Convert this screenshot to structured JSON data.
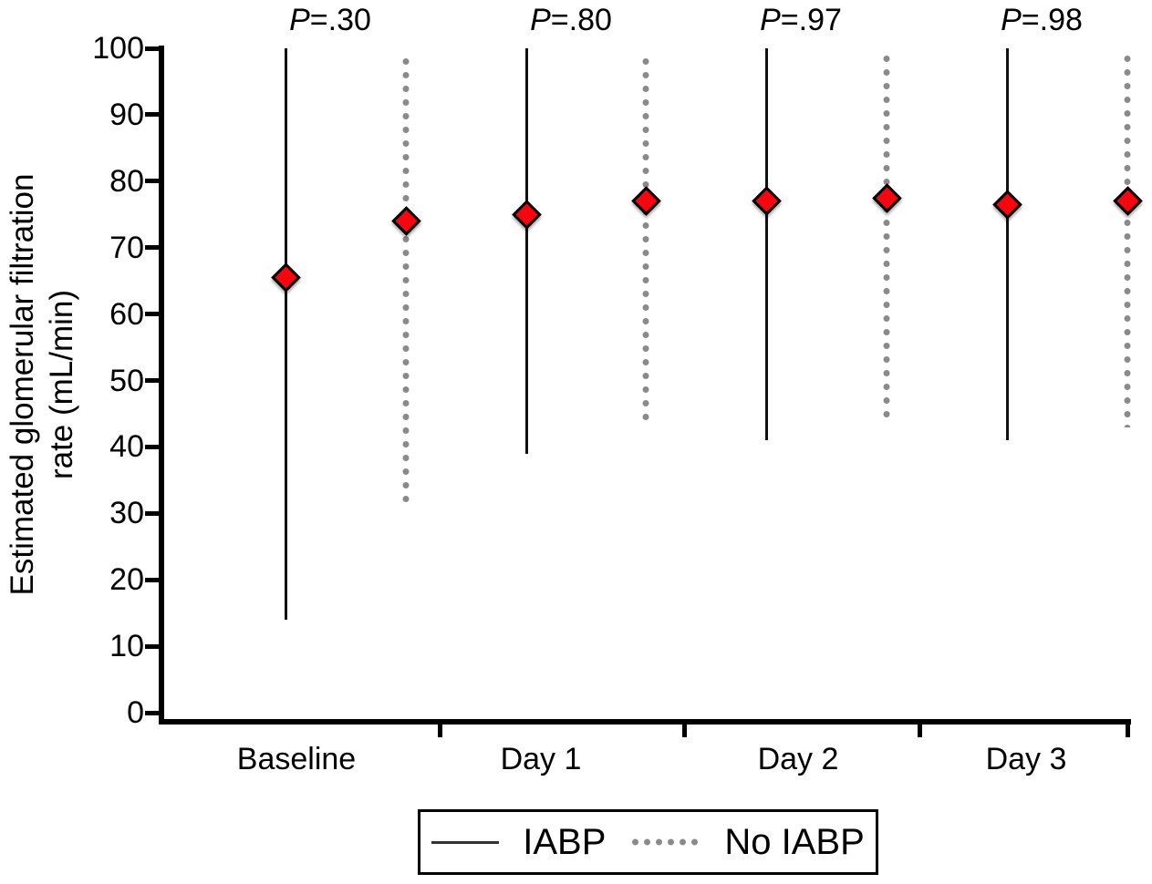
{
  "figure": {
    "background": "#ffffff",
    "marker_color": "#f5070f",
    "iabp_line_color": "#111111",
    "no_iabp_dot_color": "#8a8a8a"
  },
  "legend": {
    "items": [
      {
        "label": "IABP",
        "style": "solid-line"
      },
      {
        "label": "No IABP",
        "style": "dotted-line"
      }
    ]
  },
  "chart_data": {
    "type": "scatter",
    "subtype": "mean-with-range-bars",
    "title": "",
    "xlabel": "",
    "ylabel": "Estimated glomerular filtration rate (mL/min)",
    "ylabel_lines": [
      "Estimated glomerular filtration",
      "rate (mL/min)"
    ],
    "ylim": [
      0,
      100
    ],
    "yticks": [
      0,
      10,
      20,
      30,
      40,
      50,
      60,
      70,
      80,
      90,
      100
    ],
    "grid": false,
    "legend_position": "bottom",
    "categories": [
      "Baseline",
      "Day 1",
      "Day 2",
      "Day 3"
    ],
    "p_values": [
      "P=.30",
      "P=.80",
      "P=.97",
      "P=.98"
    ],
    "series": [
      {
        "name": "IABP",
        "line_style": "solid",
        "color": "#111111",
        "marker": {
          "shape": "diamond",
          "fill": "#f5070f",
          "border": "#000000"
        },
        "points": [
          {
            "category": "Baseline",
            "mean": 65.5,
            "low": 14,
            "high": 100
          },
          {
            "category": "Day 1",
            "mean": 75,
            "low": 39,
            "high": 100
          },
          {
            "category": "Day 2",
            "mean": 77,
            "low": 41,
            "high": 100
          },
          {
            "category": "Day 3",
            "mean": 76.5,
            "low": 41,
            "high": 100
          }
        ]
      },
      {
        "name": "No IABP",
        "line_style": "dotted",
        "color": "#8a8a8a",
        "marker": {
          "shape": "diamond",
          "fill": "#f5070f",
          "border": "#000000"
        },
        "points": [
          {
            "category": "Baseline",
            "mean": 74,
            "low": 31,
            "high": 99
          },
          {
            "category": "Day 1",
            "mean": 77,
            "low": 43,
            "high": 99
          },
          {
            "category": "Day 2",
            "mean": 77.5,
            "low": 43.5,
            "high": 99.5
          },
          {
            "category": "Day 3",
            "mean": 77,
            "low": 43,
            "high": 99.5
          }
        ]
      }
    ]
  }
}
